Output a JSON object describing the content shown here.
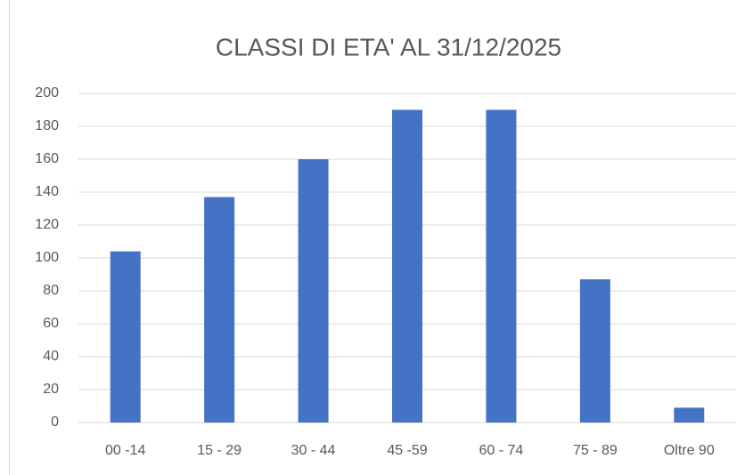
{
  "chart_data": {
    "type": "bar",
    "title": "CLASSI DI ETA' AL 31/12/2025",
    "categories": [
      "00 -14",
      "15 - 29",
      "30 - 44",
      "45 -59",
      "60 - 74",
      "75 - 89",
      "Oltre 90"
    ],
    "values": [
      104,
      137,
      160,
      190,
      190,
      87,
      9
    ],
    "color": "#4472c4",
    "ylim": [
      0,
      200
    ],
    "yticks": [
      0,
      20,
      40,
      60,
      80,
      100,
      120,
      140,
      160,
      180,
      200
    ],
    "grid": true
  }
}
